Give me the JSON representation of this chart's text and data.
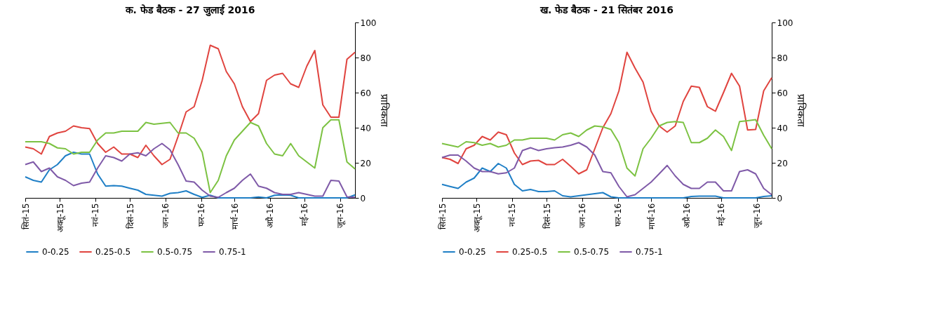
{
  "chart_data": [
    {
      "type": "line",
      "title": "क. फेड बैठक - 27 जुलाई 2016",
      "ylabel": "प्रायिकता",
      "x": [
        "2015-09-01",
        "2015-09-08",
        "2015-09-15",
        "2015-09-22",
        "2015-09-29",
        "2015-10-06",
        "2015-10-13",
        "2015-10-20",
        "2015-10-27",
        "2015-11-03",
        "2015-11-10",
        "2015-11-17",
        "2015-11-24",
        "2015-12-01",
        "2015-12-08",
        "2015-12-15",
        "2015-12-22",
        "2015-12-29",
        "2016-01-05",
        "2016-01-12",
        "2016-01-19",
        "2016-01-26",
        "2016-02-02",
        "2016-02-09",
        "2016-02-16",
        "2016-02-23",
        "2016-03-01",
        "2016-03-08",
        "2016-03-15",
        "2016-03-22",
        "2016-03-29",
        "2016-04-05",
        "2016-04-12",
        "2016-04-19",
        "2016-04-26",
        "2016-05-03",
        "2016-05-10",
        "2016-05-17",
        "2016-05-24",
        "2016-05-31",
        "2016-06-07",
        "2016-06-14"
      ],
      "xlim": [
        "2015-09-01",
        "2016-06-14"
      ],
      "xticks": [
        {
          "value": "2015-09-01",
          "label": "सितं-15"
        },
        {
          "value": "2015-10-01",
          "label": "अक्तू-15"
        },
        {
          "value": "2015-11-01",
          "label": "नवं-15"
        },
        {
          "value": "2015-12-01",
          "label": "दिसं-15"
        },
        {
          "value": "2016-01-01",
          "label": "जन-16"
        },
        {
          "value": "2016-02-01",
          "label": "फर-16"
        },
        {
          "value": "2016-03-01",
          "label": "मार्च-16"
        },
        {
          "value": "2016-04-01",
          "label": "अप्रै-16"
        },
        {
          "value": "2016-05-01",
          "label": "मई-16"
        },
        {
          "value": "2016-06-01",
          "label": "जून-16"
        }
      ],
      "ylim": [
        0,
        100
      ],
      "yticks": [
        0,
        20,
        40,
        60,
        80,
        100
      ],
      "grid": false,
      "legend": "bottom",
      "marker": "none",
      "line_style": "solid",
      "series": [
        {
          "name": "0-0.25",
          "color": "#1f7fc6",
          "values": [
            12,
            10,
            9,
            16,
            19,
            24,
            26,
            25,
            25,
            13.6,
            6.7,
            7,
            6.7,
            5.5,
            4.4,
            2,
            1.5,
            1,
            2.6,
            3,
            4,
            2,
            0.3,
            1.5,
            0,
            0,
            0,
            0,
            0,
            0.5,
            0,
            1.5,
            1.7,
            1.5,
            0,
            0,
            0,
            0,
            0,
            0,
            0,
            1.7
          ]
        },
        {
          "name": "0.25-0.5",
          "color": "#e0443f",
          "values": [
            29,
            28,
            25,
            35,
            37,
            38,
            41,
            40,
            39.5,
            31,
            26,
            29,
            25,
            25,
            23,
            30,
            24,
            19,
            22,
            35,
            49,
            52,
            67,
            87,
            85,
            72,
            65,
            52,
            43.5,
            48,
            67,
            70,
            71,
            65,
            63,
            75,
            84,
            53,
            46,
            46,
            79,
            83
          ]
        },
        {
          "name": "0.5-0.75",
          "color": "#7cc242",
          "values": [
            32,
            32,
            32,
            31,
            28.5,
            28,
            25,
            26,
            26,
            33,
            37,
            37,
            38,
            38,
            38,
            43,
            42,
            42.5,
            43,
            37,
            37,
            34,
            26,
            3,
            10,
            24,
            33,
            38,
            43,
            41,
            31,
            25,
            24,
            31,
            24,
            20.5,
            17,
            40,
            44.5,
            44.5,
            20.5,
            16.5
          ]
        },
        {
          "name": "0.75-1",
          "color": "#7f5aa8",
          "values": [
            19,
            20.5,
            15,
            17,
            12,
            10,
            7,
            8.4,
            9,
            17,
            24,
            23,
            21,
            25,
            25.7,
            24,
            28,
            31,
            27.4,
            19,
            9.6,
            9,
            4.4,
            1,
            0.3,
            3,
            5.5,
            10,
            13.6,
            6.7,
            5.5,
            3,
            2,
            2,
            3,
            2,
            1,
            1,
            10,
            9.6,
            0.6,
            0.3
          ]
        }
      ]
    },
    {
      "type": "line",
      "title": "ख. फेड बैठक - 21 सितंबर 2016",
      "ylabel": "प्रायिकता",
      "x": [
        "2015-09-01",
        "2015-09-08",
        "2015-09-15",
        "2015-09-22",
        "2015-09-29",
        "2015-10-06",
        "2015-10-13",
        "2015-10-20",
        "2015-10-27",
        "2015-11-03",
        "2015-11-10",
        "2015-11-17",
        "2015-11-24",
        "2015-12-01",
        "2015-12-08",
        "2015-12-15",
        "2015-12-22",
        "2015-12-29",
        "2016-01-05",
        "2016-01-12",
        "2016-01-19",
        "2016-01-26",
        "2016-02-02",
        "2016-02-09",
        "2016-02-16",
        "2016-02-23",
        "2016-03-01",
        "2016-03-08",
        "2016-03-15",
        "2016-03-22",
        "2016-03-29",
        "2016-04-05",
        "2016-04-12",
        "2016-04-19",
        "2016-04-26",
        "2016-05-03",
        "2016-05-10",
        "2016-05-17",
        "2016-05-24",
        "2016-05-31",
        "2016-06-07",
        "2016-06-14"
      ],
      "xlim": [
        "2015-09-01",
        "2016-06-14"
      ],
      "xticks": [
        {
          "value": "2015-09-01",
          "label": "सितं-15"
        },
        {
          "value": "2015-10-01",
          "label": "अक्तू-15"
        },
        {
          "value": "2015-11-01",
          "label": "नवं-15"
        },
        {
          "value": "2015-12-01",
          "label": "दिसं-15"
        },
        {
          "value": "2016-01-01",
          "label": "जन-16"
        },
        {
          "value": "2016-02-01",
          "label": "फर-16"
        },
        {
          "value": "2016-03-01",
          "label": "मार्च-16"
        },
        {
          "value": "2016-04-01",
          "label": "अप्रै-16"
        },
        {
          "value": "2016-05-01",
          "label": "मई-16"
        },
        {
          "value": "2016-06-01",
          "label": "जून-16"
        }
      ],
      "ylim": [
        0,
        100
      ],
      "yticks": [
        0,
        20,
        40,
        60,
        80,
        100
      ],
      "grid": false,
      "legend": "bottom",
      "marker": "none",
      "line_style": "solid",
      "series": [
        {
          "name": "0-0.25",
          "color": "#1f7fc6",
          "values": [
            7.7,
            6.5,
            5.4,
            9,
            11.3,
            17,
            15,
            19.6,
            17,
            7.7,
            4,
            4.8,
            3.6,
            3.6,
            4,
            1.2,
            0.6,
            1.2,
            1.8,
            2.4,
            3,
            0.6,
            0,
            0,
            0,
            0,
            0,
            0,
            0,
            0,
            0,
            0.8,
            1,
            1,
            1,
            0,
            0,
            0,
            0,
            0,
            0.8,
            1.2
          ]
        },
        {
          "name": "0.25-0.5",
          "color": "#e0443f",
          "values": [
            23,
            22,
            19.6,
            28,
            30,
            35,
            33,
            37.5,
            36,
            25.6,
            19,
            21,
            21.4,
            19,
            19,
            22,
            18,
            13.7,
            16,
            28,
            40,
            48,
            61,
            83,
            74,
            66,
            49.4,
            41,
            37.5,
            41,
            55,
            63.7,
            63,
            52,
            49.4,
            60,
            71,
            63.7,
            38.7,
            39,
            61,
            68.5
          ]
        },
        {
          "name": "0.5-0.75",
          "color": "#7cc242",
          "values": [
            31,
            30,
            29,
            32,
            31.5,
            30,
            31,
            29,
            30,
            33,
            33,
            34,
            34,
            34,
            33,
            36,
            37,
            35,
            38.7,
            41,
            40.5,
            39,
            31.5,
            17,
            12.5,
            28,
            34,
            41,
            43,
            43.5,
            43,
            31.5,
            31.5,
            34,
            38.7,
            35,
            27,
            43.5,
            44,
            44.6,
            35.7,
            28
          ]
        },
        {
          "name": "0.75-1",
          "color": "#7f5aa8",
          "values": [
            23,
            24.4,
            24.4,
            21,
            17,
            15,
            15,
            13.7,
            14.3,
            17,
            27,
            28.6,
            27,
            28,
            28.6,
            29,
            30,
            31.5,
            29,
            24.4,
            15,
            14.3,
            6.5,
            0.6,
            1.8,
            5.4,
            9,
            13.7,
            18.5,
            12.5,
            7.7,
            5.4,
            5.4,
            9,
            9,
            4,
            4,
            15,
            16,
            13.7,
            5.4,
            1.8
          ]
        }
      ]
    }
  ]
}
